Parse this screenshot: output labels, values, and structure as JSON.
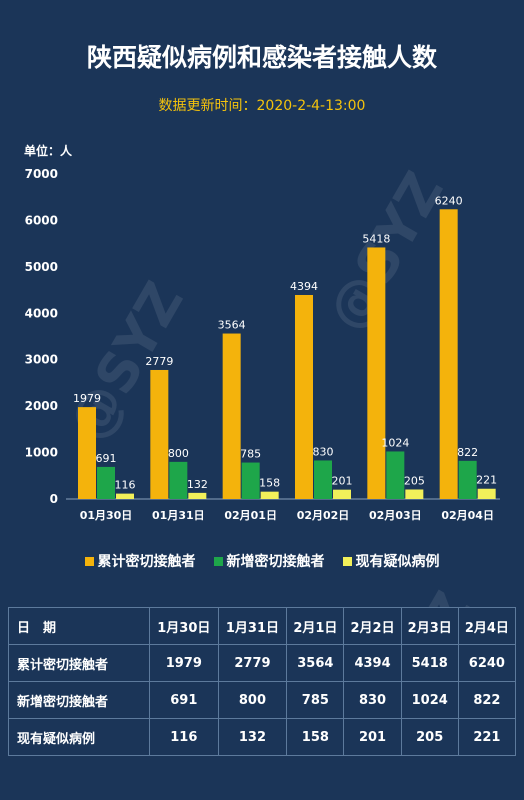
{
  "title": "陕西疑似病例和感染者接触人数",
  "subtitle": "数据更新时间：2020-2-4-13:00",
  "unit_label": "单位：人",
  "watermark": "@SYZ",
  "colors": {
    "background": "#1b3558",
    "cumulative": "#f4b30c",
    "new": "#1ea64a",
    "suspected": "#f2f05a",
    "subtitle": "#f4c20d"
  },
  "chart_data": {
    "type": "bar",
    "categories": [
      "01月30日",
      "01月31日",
      "02月01日",
      "02月02日",
      "02月03日",
      "02月04日"
    ],
    "series": [
      {
        "name": "累计密切接触者",
        "values": [
          1979,
          2779,
          3564,
          4394,
          5418,
          6240
        ]
      },
      {
        "name": "新增密切接触者",
        "values": [
          691,
          800,
          785,
          830,
          1024,
          822
        ]
      },
      {
        "name": "现有疑似病例",
        "values": [
          116,
          132,
          158,
          201,
          205,
          221
        ]
      }
    ],
    "yticks": [
      0,
      1000,
      2000,
      3000,
      4000,
      5000,
      6000,
      7000
    ],
    "ylim": [
      0,
      7000
    ],
    "legend_position": "bottom",
    "grid": false
  },
  "table": {
    "header_label": "日　期",
    "columns": [
      "1月30日",
      "1月31日",
      "2月1日",
      "2月2日",
      "2月3日",
      "2月4日"
    ],
    "rows": [
      {
        "label": "累计密切接触者",
        "values": [
          "1979",
          "2779",
          "3564",
          "4394",
          "5418",
          "6240"
        ]
      },
      {
        "label": "新增密切接触者",
        "values": [
          "691",
          "800",
          "785",
          "830",
          "1024",
          "822"
        ]
      },
      {
        "label": "现有疑似病例",
        "values": [
          "116",
          "132",
          "158",
          "201",
          "205",
          "221"
        ]
      }
    ]
  }
}
